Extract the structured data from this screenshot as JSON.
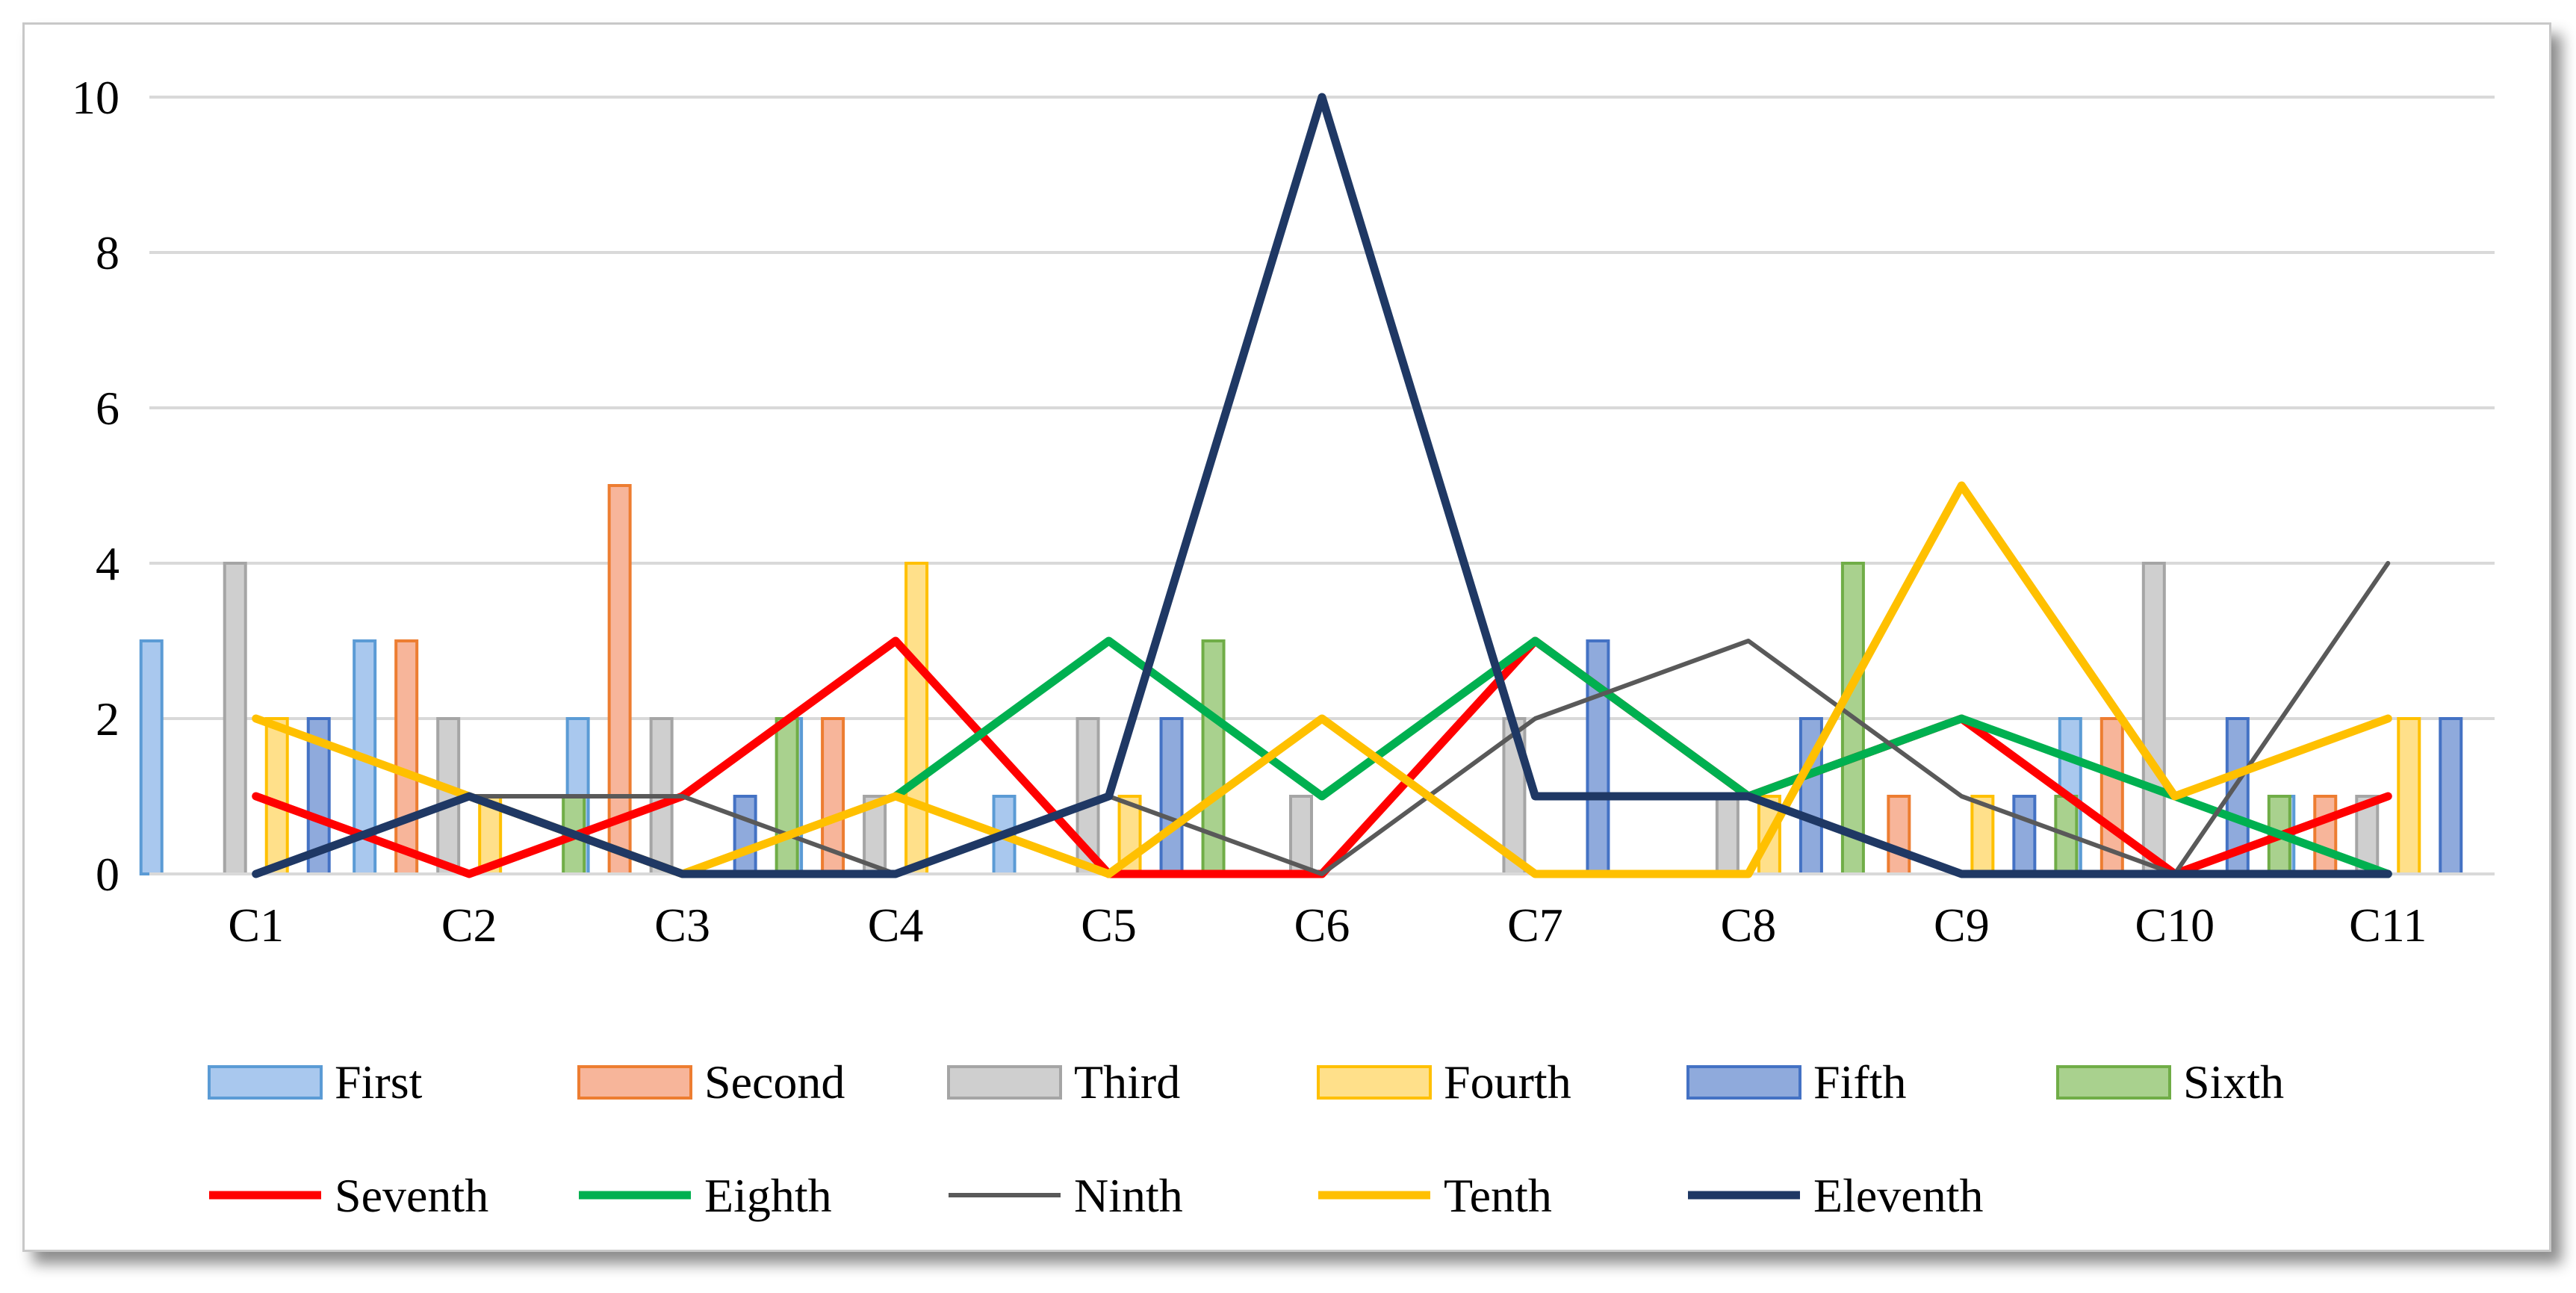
{
  "chart_data": {
    "type": "bar",
    "title": "",
    "xlabel": "",
    "ylabel": "",
    "ylim": [
      0,
      10
    ],
    "yticks": [
      "0",
      "2",
      "4",
      "6",
      "8",
      "10"
    ],
    "categories": [
      "C1",
      "C2",
      "C3",
      "C4",
      "C5",
      "C6",
      "C7",
      "C8",
      "C9",
      "C10",
      "C11"
    ],
    "grid": true,
    "legend_position": "bottom",
    "bar_series": [
      {
        "name": "First",
        "fill": "#a9c8ee",
        "stroke": "#5b9bd5",
        "values": [
          3,
          3,
          2,
          2,
          1,
          0,
          0,
          0,
          0,
          2,
          1
        ]
      },
      {
        "name": "Second",
        "fill": "#f7b59a",
        "stroke": "#ed7d31",
        "values": [
          0,
          3,
          5,
          2,
          0,
          0,
          0,
          0,
          1,
          2,
          1
        ]
      },
      {
        "name": "Third",
        "fill": "#cfcfcf",
        "stroke": "#a5a5a5",
        "values": [
          4,
          2,
          2,
          1,
          2,
          1,
          2,
          1,
          0,
          4,
          1
        ]
      },
      {
        "name": "Fourth",
        "fill": "#ffe08a",
        "stroke": "#ffc000",
        "values": [
          2,
          1,
          0,
          4,
          1,
          0,
          0,
          1,
          1,
          0,
          2
        ]
      },
      {
        "name": "Fifth",
        "fill": "#8faadc",
        "stroke": "#4472c4",
        "values": [
          2,
          0,
          1,
          0,
          2,
          0,
          3,
          2,
          1,
          2,
          2
        ]
      },
      {
        "name": "Sixth",
        "fill": "#a9d18e",
        "stroke": "#70ad47",
        "values": [
          0,
          1,
          2,
          0,
          3,
          0,
          0,
          4,
          1,
          1,
          0
        ]
      }
    ],
    "line_series": [
      {
        "name": "Seventh",
        "color": "#ff0000",
        "width": 11,
        "values": [
          1,
          0,
          1,
          3,
          0,
          0,
          3,
          1,
          2,
          0,
          1
        ]
      },
      {
        "name": "Eighth",
        "color": "#00b050",
        "width": 11,
        "values": [
          null,
          null,
          null,
          1,
          3,
          1,
          3,
          1,
          2,
          1,
          0
        ]
      },
      {
        "name": "Ninth",
        "color": "#595959",
        "width": 6,
        "values": [
          null,
          1,
          1,
          0,
          1,
          0,
          2,
          3,
          1,
          0,
          4
        ]
      },
      {
        "name": "Tenth",
        "color": "#ffc000",
        "width": 11,
        "values": [
          2,
          1,
          0,
          1,
          0,
          2,
          0,
          0,
          5,
          1,
          2
        ]
      },
      {
        "name": "Eleventh",
        "color": "#1f3864",
        "width": 11,
        "values": [
          0,
          1,
          0,
          0,
          1,
          10,
          1,
          1,
          0,
          0,
          0
        ]
      }
    ]
  }
}
